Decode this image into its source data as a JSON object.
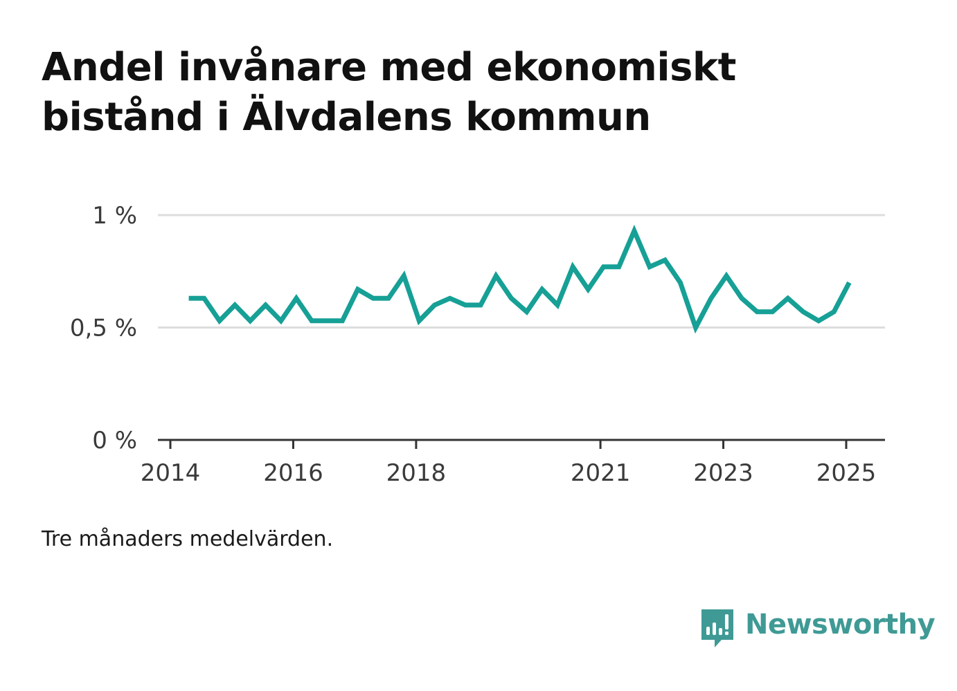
{
  "title_lines": [
    "Andel invånare med ekonomiskt",
    "bistånd i Älvdalens kommun"
  ],
  "note": "Tre månaders medelvärden.",
  "logo_text": "Newsworthy",
  "colors": {
    "line": "#16a096",
    "grid": "#dddddd",
    "axis": "#333333",
    "logo": "#3f9a95"
  },
  "chart_data": {
    "type": "line",
    "title": "Andel invånare med ekonomiskt bistånd i Älvdalens kommun",
    "xlabel": "",
    "ylabel": "",
    "grid": true,
    "legend": "none",
    "x_ticks": [
      {
        "value": 2014.0,
        "label": "2014"
      },
      {
        "value": 2016.0,
        "label": "2016"
      },
      {
        "value": 2018.0,
        "label": "2018"
      },
      {
        "value": 2021.0,
        "label": "2021"
      },
      {
        "value": 2023.0,
        "label": "2023"
      },
      {
        "value": 2025.0,
        "label": "2025"
      }
    ],
    "y_ticks": [
      {
        "value": 0.0,
        "label": "0 %"
      },
      {
        "value": 0.5,
        "label": "0,5 %"
      },
      {
        "value": 1.0,
        "label": "1 %"
      }
    ],
    "xlim": [
      2014.0,
      2025.63
    ],
    "ylim": [
      0,
      1.0
    ],
    "series": [
      {
        "values": [
          [
            2014.3,
            0.63
          ],
          [
            2014.55,
            0.63
          ],
          [
            2014.8,
            0.53
          ],
          [
            2015.05,
            0.6
          ],
          [
            2015.3,
            0.53
          ],
          [
            2015.55,
            0.6
          ],
          [
            2015.8,
            0.53
          ],
          [
            2016.05,
            0.63
          ],
          [
            2016.3,
            0.53
          ],
          [
            2016.55,
            0.53
          ],
          [
            2016.8,
            0.53
          ],
          [
            2017.05,
            0.67
          ],
          [
            2017.3,
            0.63
          ],
          [
            2017.55,
            0.63
          ],
          [
            2017.8,
            0.73
          ],
          [
            2018.05,
            0.53
          ],
          [
            2018.3,
            0.6
          ],
          [
            2018.55,
            0.63
          ],
          [
            2018.8,
            0.6
          ],
          [
            2019.05,
            0.6
          ],
          [
            2019.3,
            0.73
          ],
          [
            2019.55,
            0.63
          ],
          [
            2019.8,
            0.57
          ],
          [
            2020.05,
            0.67
          ],
          [
            2020.3,
            0.6
          ],
          [
            2020.55,
            0.77
          ],
          [
            2020.8,
            0.67
          ],
          [
            2021.05,
            0.77
          ],
          [
            2021.3,
            0.77
          ],
          [
            2021.55,
            0.93
          ],
          [
            2021.8,
            0.77
          ],
          [
            2022.05,
            0.8
          ],
          [
            2022.3,
            0.7
          ],
          [
            2022.55,
            0.5
          ],
          [
            2022.8,
            0.63
          ],
          [
            2023.05,
            0.73
          ],
          [
            2023.3,
            0.63
          ],
          [
            2023.55,
            0.57
          ],
          [
            2023.8,
            0.57
          ],
          [
            2024.05,
            0.63
          ],
          [
            2024.3,
            0.57
          ],
          [
            2024.55,
            0.53
          ],
          [
            2024.8,
            0.57
          ],
          [
            2025.05,
            0.7
          ]
        ]
      }
    ]
  }
}
